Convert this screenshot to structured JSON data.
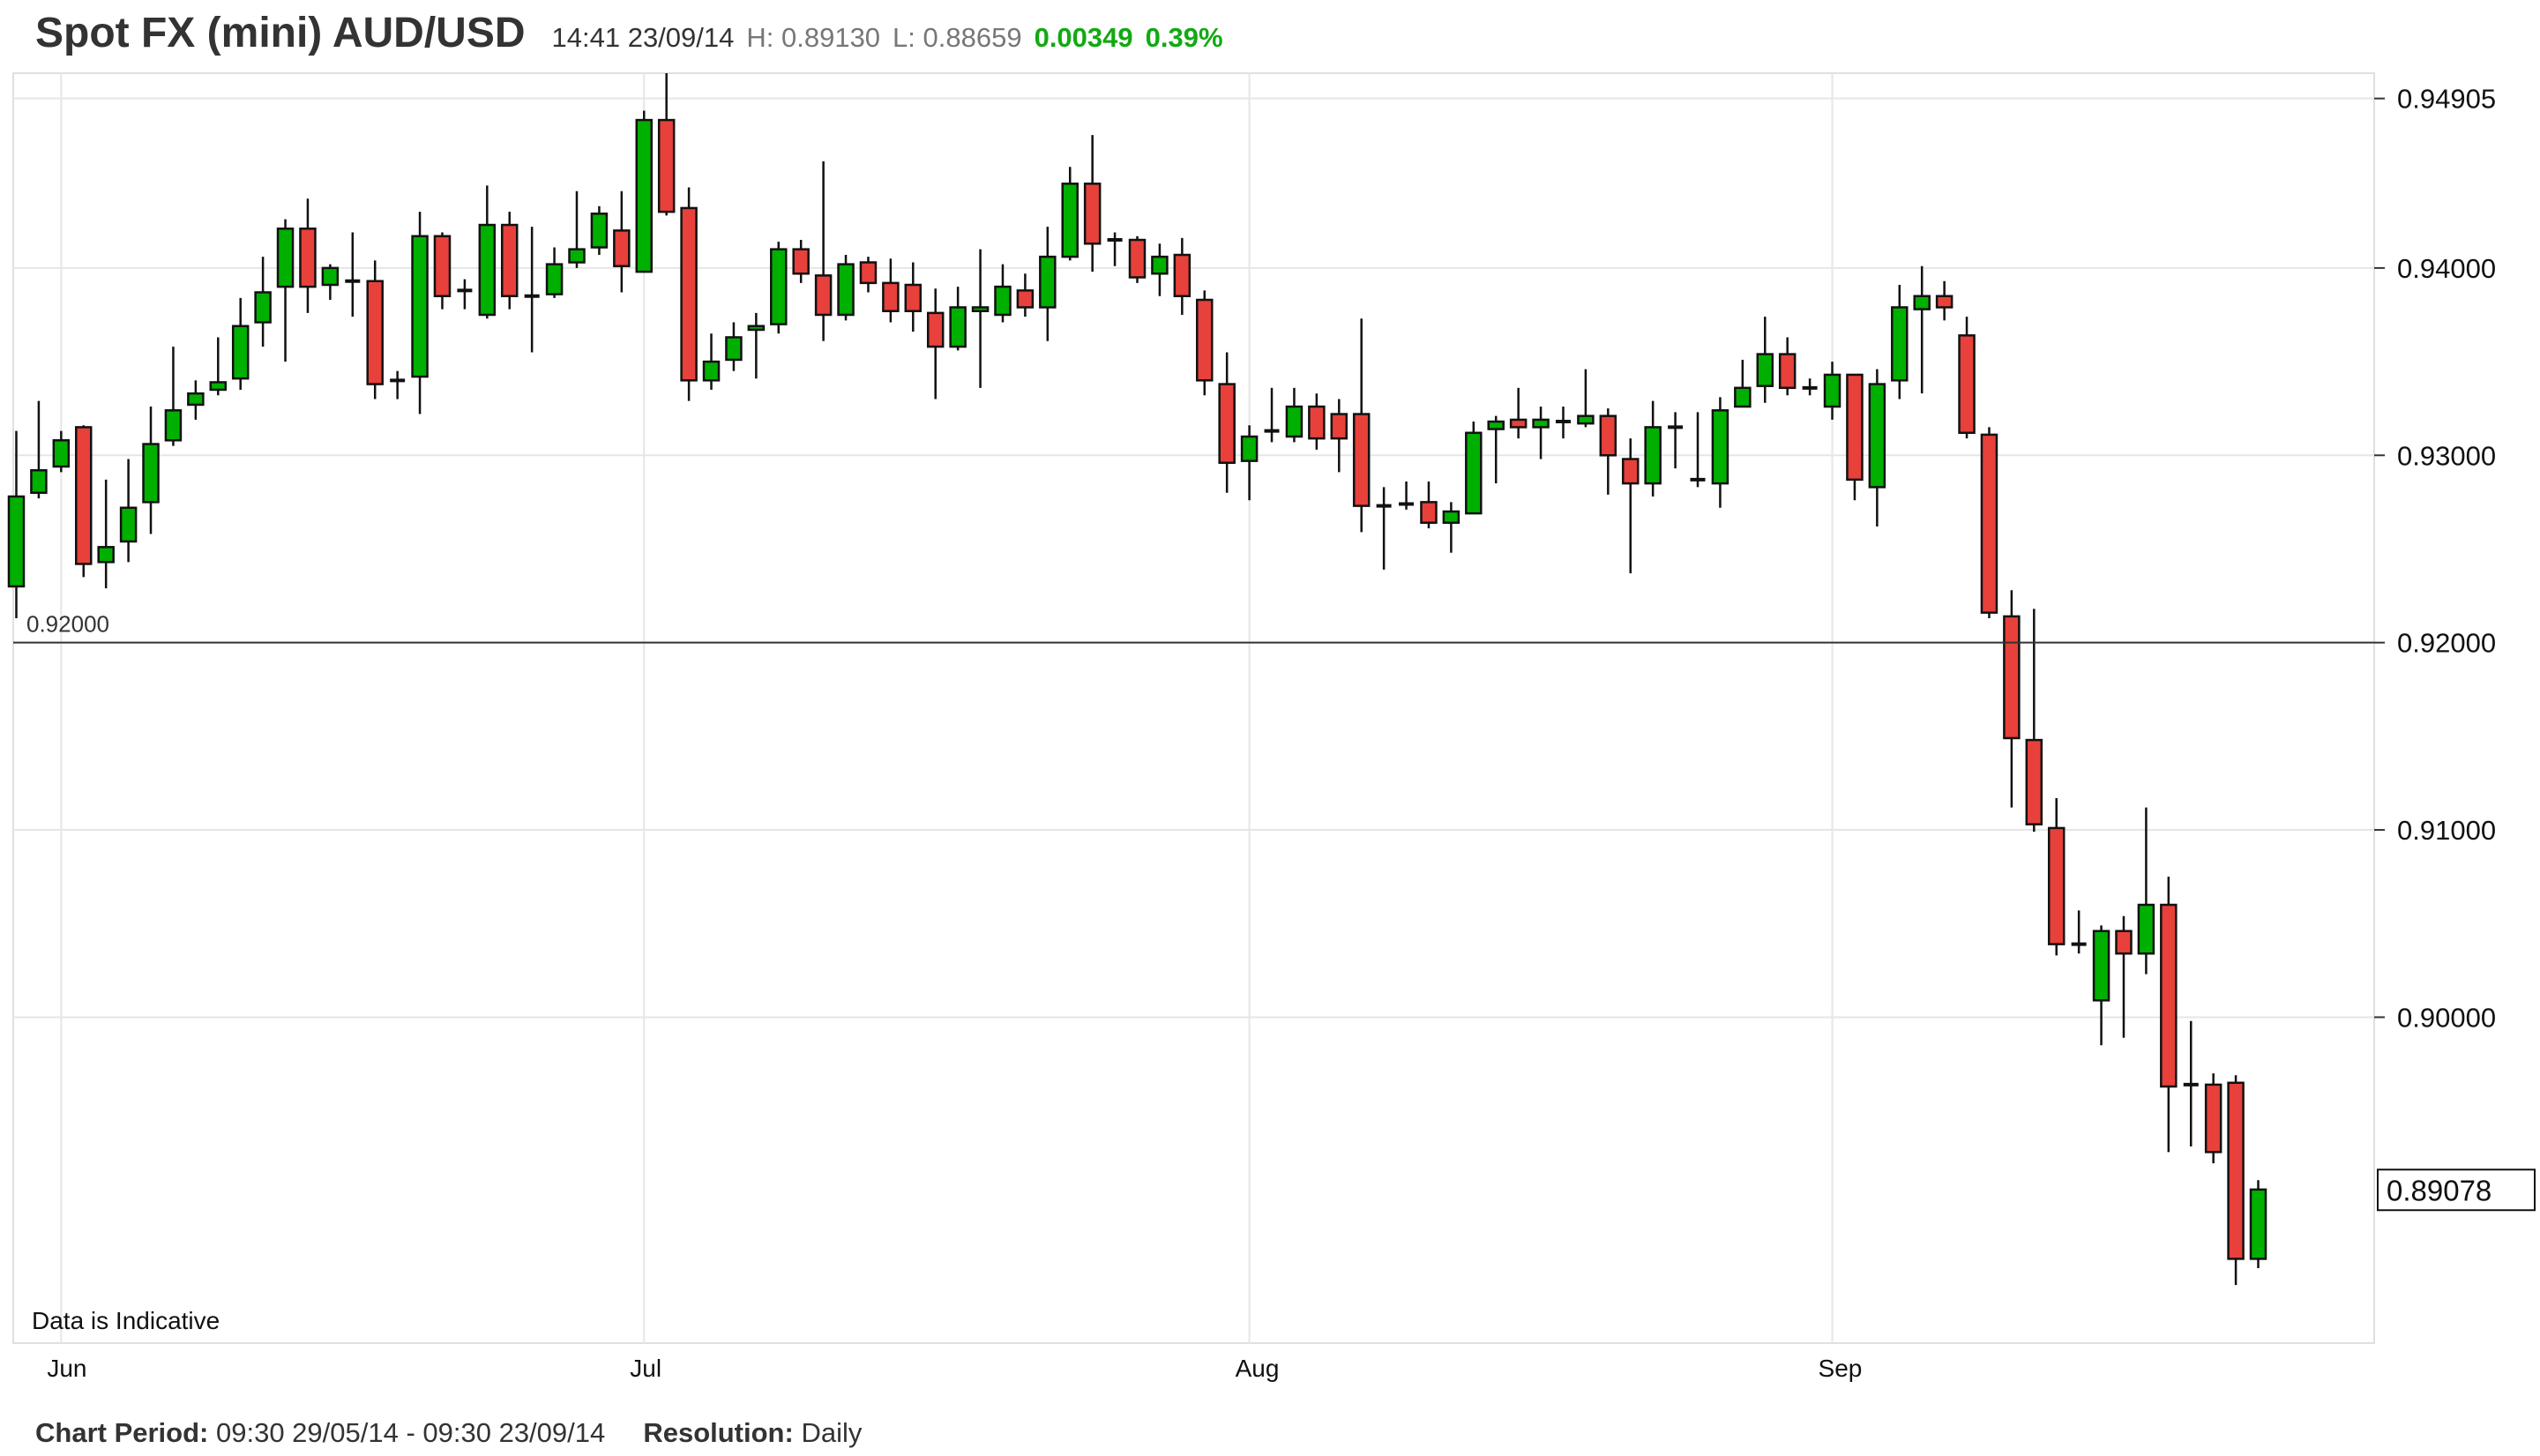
{
  "header": {
    "title": "Spot FX (mini) AUD/USD",
    "time": "14:41 23/09/14",
    "high": "H: 0.89130",
    "low": "L: 0.88659",
    "change": "0.00349",
    "change_pct": "0.39%"
  },
  "footer": {
    "period_label": "Chart Period:",
    "period_value": "09:30 29/05/14 - 09:30 23/09/14",
    "resolution_label": "Resolution:",
    "resolution_value": "Daily"
  },
  "colors": {
    "up": "#00b000",
    "down": "#e8403a",
    "grid": "#e6e6e6"
  },
  "chart_data": {
    "type": "candlestick",
    "title": "Spot FX (mini) AUD/USD",
    "ylim": [
      0.8826,
      0.9504
    ],
    "y_ticks": [
      "0.94905",
      "0.94000",
      "0.93000",
      "0.92000",
      "0.91000",
      "0.90000"
    ],
    "y_tick_values": [
      0.94905,
      0.94,
      0.93,
      0.92,
      0.91,
      0.9
    ],
    "reference_line": {
      "value": 0.92,
      "label": "0.92000"
    },
    "current_price": {
      "value": 0.89078,
      "label": "0.89078"
    },
    "annotation": "Data is Indicative",
    "x_labels": [
      {
        "label": "Jun",
        "index": 2
      },
      {
        "label": "Jul",
        "index": 28
      },
      {
        "label": "Aug",
        "index": 55
      },
      {
        "label": "Sep",
        "index": 81
      }
    ],
    "ohlc_fields": [
      "open",
      "high",
      "low",
      "close"
    ],
    "candles": [
      [
        0.923,
        0.9313,
        0.9213,
        0.9278
      ],
      [
        0.928,
        0.9329,
        0.9277,
        0.9292
      ],
      [
        0.9294,
        0.9313,
        0.9291,
        0.9308
      ],
      [
        0.9315,
        0.9316,
        0.9235,
        0.9242
      ],
      [
        0.9243,
        0.9287,
        0.9229,
        0.9251
      ],
      [
        0.9254,
        0.9298,
        0.9243,
        0.9272
      ],
      [
        0.9275,
        0.9326,
        0.9258,
        0.9306
      ],
      [
        0.9308,
        0.9358,
        0.9305,
        0.9324
      ],
      [
        0.9327,
        0.934,
        0.9319,
        0.9333
      ],
      [
        0.9335,
        0.9363,
        0.9332,
        0.9339
      ],
      [
        0.9341,
        0.9384,
        0.9335,
        0.9369
      ],
      [
        0.9371,
        0.9406,
        0.9358,
        0.9387
      ],
      [
        0.939,
        0.9426,
        0.935,
        0.9421
      ],
      [
        0.9421,
        0.9437,
        0.9376,
        0.939
      ],
      [
        0.9391,
        0.9402,
        0.9383,
        0.94
      ],
      [
        0.9393,
        0.9419,
        0.9374,
        0.9393
      ],
      [
        0.9393,
        0.9404,
        0.933,
        0.9338
      ],
      [
        0.934,
        0.9345,
        0.933,
        0.934
      ],
      [
        0.9342,
        0.943,
        0.9322,
        0.9417
      ],
      [
        0.9417,
        0.9419,
        0.9378,
        0.9385
      ],
      [
        0.9388,
        0.9394,
        0.9378,
        0.9388
      ],
      [
        0.9375,
        0.9444,
        0.9373,
        0.9423
      ],
      [
        0.9423,
        0.943,
        0.9378,
        0.9385
      ],
      [
        0.9385,
        0.9422,
        0.9355,
        0.9385
      ],
      [
        0.9386,
        0.9411,
        0.9384,
        0.9402
      ],
      [
        0.9403,
        0.9441,
        0.94,
        0.941
      ],
      [
        0.9411,
        0.9433,
        0.9407,
        0.9429
      ],
      [
        0.942,
        0.9441,
        0.9387,
        0.9401
      ],
      [
        0.9398,
        0.9484,
        0.9398,
        0.9479
      ],
      [
        0.9479,
        0.9504,
        0.9428,
        0.943
      ],
      [
        0.9432,
        0.9443,
        0.9329,
        0.934
      ],
      [
        0.934,
        0.9365,
        0.9335,
        0.935
      ],
      [
        0.9351,
        0.9371,
        0.9345,
        0.9363
      ],
      [
        0.9367,
        0.9376,
        0.9341,
        0.9369
      ],
      [
        0.937,
        0.9414,
        0.9365,
        0.941
      ],
      [
        0.941,
        0.9415,
        0.9392,
        0.9397
      ],
      [
        0.9396,
        0.9457,
        0.9361,
        0.9375
      ],
      [
        0.9375,
        0.9407,
        0.9372,
        0.9402
      ],
      [
        0.9403,
        0.9406,
        0.9387,
        0.9392
      ],
      [
        0.9392,
        0.9405,
        0.9371,
        0.9377
      ],
      [
        0.9391,
        0.9403,
        0.9366,
        0.9377
      ],
      [
        0.9376,
        0.9389,
        0.933,
        0.9358
      ],
      [
        0.9358,
        0.939,
        0.9356,
        0.9379
      ],
      [
        0.9377,
        0.941,
        0.9336,
        0.9379
      ],
      [
        0.9375,
        0.9402,
        0.9371,
        0.939
      ],
      [
        0.9388,
        0.9397,
        0.9374,
        0.9379
      ],
      [
        0.9379,
        0.9422,
        0.9361,
        0.9406
      ],
      [
        0.9406,
        0.9454,
        0.9404,
        0.9445
      ],
      [
        0.9445,
        0.9471,
        0.9398,
        0.9413
      ],
      [
        0.9415,
        0.9419,
        0.9401,
        0.9415
      ],
      [
        0.9415,
        0.9417,
        0.9392,
        0.9395
      ],
      [
        0.9397,
        0.9413,
        0.9385,
        0.9406
      ],
      [
        0.9407,
        0.9416,
        0.9375,
        0.9385
      ],
      [
        0.9383,
        0.9388,
        0.9332,
        0.934
      ],
      [
        0.9338,
        0.9355,
        0.928,
        0.9296
      ],
      [
        0.9297,
        0.9316,
        0.9276,
        0.931
      ],
      [
        0.9313,
        0.9336,
        0.9307,
        0.9313
      ],
      [
        0.931,
        0.9336,
        0.9307,
        0.9326
      ],
      [
        0.9326,
        0.9333,
        0.9303,
        0.9309
      ],
      [
        0.9322,
        0.933,
        0.9291,
        0.9309
      ],
      [
        0.9322,
        0.9373,
        0.9259,
        0.9273
      ],
      [
        0.9273,
        0.9283,
        0.9239,
        0.9273
      ],
      [
        0.9274,
        0.9286,
        0.9271,
        0.9274
      ],
      [
        0.9275,
        0.9286,
        0.9261,
        0.9264
      ],
      [
        0.9264,
        0.9275,
        0.9248,
        0.927
      ],
      [
        0.9269,
        0.9318,
        0.9269,
        0.9312
      ],
      [
        0.9314,
        0.9321,
        0.9285,
        0.9318
      ],
      [
        0.9319,
        0.9336,
        0.9309,
        0.9315
      ],
      [
        0.9315,
        0.9326,
        0.9298,
        0.9319
      ],
      [
        0.9318,
        0.9326,
        0.9309,
        0.9318
      ],
      [
        0.9317,
        0.9346,
        0.9315,
        0.9321
      ],
      [
        0.9321,
        0.9325,
        0.9279,
        0.93
      ],
      [
        0.9298,
        0.9309,
        0.9237,
        0.9285
      ],
      [
        0.9285,
        0.9329,
        0.9278,
        0.9315
      ],
      [
        0.9315,
        0.9323,
        0.9293,
        0.9315
      ],
      [
        0.9287,
        0.9323,
        0.9283,
        0.9287
      ],
      [
        0.9285,
        0.9331,
        0.9272,
        0.9324
      ],
      [
        0.9326,
        0.9351,
        0.9326,
        0.9336
      ],
      [
        0.9337,
        0.9374,
        0.9328,
        0.9354
      ],
      [
        0.9354,
        0.9363,
        0.9332,
        0.9336
      ],
      [
        0.9336,
        0.9341,
        0.9332,
        0.9336
      ],
      [
        0.9326,
        0.935,
        0.9319,
        0.9343
      ],
      [
        0.9343,
        0.9343,
        0.9276,
        0.9287
      ],
      [
        0.9283,
        0.9346,
        0.9262,
        0.9338
      ],
      [
        0.934,
        0.9391,
        0.933,
        0.9379
      ],
      [
        0.9378,
        0.9401,
        0.9333,
        0.9385
      ],
      [
        0.9385,
        0.9393,
        0.9372,
        0.9379
      ],
      [
        0.9364,
        0.9374,
        0.9309,
        0.9312
      ],
      [
        0.9311,
        0.9315,
        0.9213,
        0.9216
      ],
      [
        0.9214,
        0.9228,
        0.9112,
        0.9149
      ],
      [
        0.9148,
        0.9218,
        0.9099,
        0.9103
      ],
      [
        0.9101,
        0.9117,
        0.9033,
        0.9039
      ],
      [
        0.9039,
        0.9057,
        0.9034,
        0.9039
      ],
      [
        0.9009,
        0.9049,
        0.8985,
        0.9046
      ],
      [
        0.9046,
        0.9054,
        0.8989,
        0.9034
      ],
      [
        0.9034,
        0.9112,
        0.9023,
        0.906
      ],
      [
        0.906,
        0.9075,
        0.8928,
        0.8963
      ],
      [
        0.8964,
        0.8998,
        0.8931,
        0.8964
      ],
      [
        0.8964,
        0.897,
        0.8922,
        0.8928
      ],
      [
        0.8965,
        0.8969,
        0.8857,
        0.8871
      ],
      [
        0.8871,
        0.8913,
        0.8866,
        0.8908
      ]
    ]
  }
}
